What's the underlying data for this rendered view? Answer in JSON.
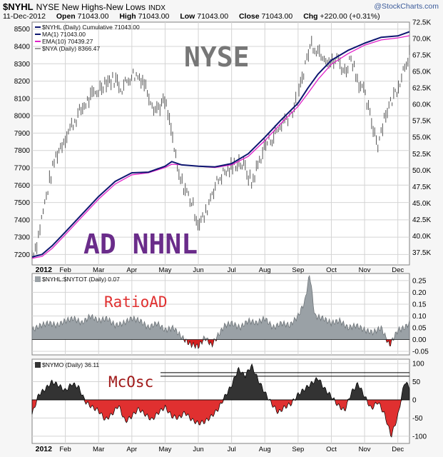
{
  "header": {
    "symbol": "$NYHL",
    "name": "NYSE New Highs-New Lows",
    "exchange": "INDX",
    "date": "11-Dec-2012",
    "open_label": "Open",
    "open": "71043.00",
    "high_label": "High",
    "high": "71043.00",
    "low_label": "Low",
    "low": "71043.00",
    "close_label": "Close",
    "close": "71043.00",
    "chg_label": "Chg",
    "chg": "+220.00 (+0.31%)",
    "credit": "@StockCharts.com"
  },
  "colors": {
    "background": "#f6f6f6",
    "panel_bg": "#ffffff",
    "grid": "#d4d4d4",
    "cumulative_line": "#0d1670",
    "ema_line": "#e020c8",
    "price_bars": "#555555",
    "ratio_fill": "#9aa1a6",
    "ratio_negative": "#d62020",
    "mcosc_positive": "#333333",
    "mcosc_negative": "#e03030",
    "annotation_nyse": "#777777",
    "annotation_adnhnl": "#6a2c8a",
    "annotation_ratio": "#e03030",
    "annotation_mcosc": "#a01818"
  },
  "chart_data": [
    {
      "type": "line",
      "panel": "main",
      "legend": [
        "$NYHL (Daily) Cumulative 71043.00",
        "MA(1) 71043.00",
        "EMA(10) 70439.27",
        "$NYA (Daily) 8366.47"
      ],
      "annotations": [
        "NYSE",
        "AD NHNL"
      ],
      "x_tick_labels": [
        "2012",
        "Feb",
        "Mar",
        "Apr",
        "May",
        "Jun",
        "Jul",
        "Aug",
        "Sep",
        "Oct",
        "Nov",
        "Dec"
      ],
      "left_axis": {
        "label": "$NYA",
        "ticks": [
          "7200",
          "7300",
          "7400",
          "7500",
          "7600",
          "7700",
          "7800",
          "7900",
          "8000",
          "8100",
          "8200",
          "8300",
          "8400",
          "8500"
        ],
        "ylim": [
          7140,
          8540
        ]
      },
      "right_axis": {
        "label": "$NYHL",
        "ticks": [
          "37.5K",
          "40.0K",
          "42.5K",
          "45.0K",
          "47.5K",
          "50.0K",
          "52.5K",
          "55.0K",
          "57.5K",
          "60.0K",
          "62.5K",
          "65.0K",
          "67.5K",
          "70.0K",
          "72.5K"
        ],
        "ylim": [
          35600,
          72500
        ]
      },
      "x_months": [
        0,
        1,
        2,
        3,
        4,
        5,
        6,
        7,
        8,
        9,
        10,
        11,
        11.35
      ],
      "series": [
        {
          "name": "$NYHL (Daily) Cumulative",
          "months": [
            0,
            0.3,
            0.6,
            1,
            1.5,
            2,
            2.5,
            3,
            3.5,
            4,
            4.2,
            4.5,
            5,
            5.5,
            6,
            6.5,
            7,
            7.5,
            8,
            8.3,
            8.6,
            9,
            9.5,
            10,
            10.5,
            11,
            11.35
          ],
          "values": [
            36800,
            37200,
            38500,
            40600,
            43300,
            46000,
            48300,
            49600,
            49700,
            50600,
            51300,
            50800,
            50600,
            50500,
            51000,
            52500,
            55000,
            57700,
            60200,
            62500,
            64600,
            66700,
            68200,
            69300,
            70200,
            70400,
            71043
          ]
        },
        {
          "name": "EMA(10)",
          "months": [
            0,
            0.3,
            0.6,
            1,
            1.5,
            2,
            2.5,
            3,
            3.5,
            4,
            4.2,
            4.5,
            5,
            5.5,
            6,
            6.5,
            7,
            7.5,
            8,
            8.3,
            8.6,
            9,
            9.5,
            10,
            10.5,
            11,
            11.35
          ],
          "values": [
            36600,
            36900,
            38100,
            40200,
            42900,
            45600,
            47900,
            49300,
            49600,
            50400,
            50900,
            50800,
            50600,
            50400,
            50800,
            52100,
            54500,
            57200,
            59700,
            61700,
            63800,
            66100,
            67700,
            69000,
            69800,
            70100,
            70439
          ]
        },
        {
          "name": "$NYA (Daily)",
          "months": [
            0,
            0.15,
            0.3,
            0.5,
            0.7,
            1,
            1.3,
            1.6,
            1.8,
            2,
            2.2,
            2.5,
            2.7,
            3,
            3.3,
            3.5,
            3.7,
            4,
            4.2,
            4.4,
            4.6,
            4.8,
            5,
            5.2,
            5.4,
            5.7,
            6,
            6.2,
            6.4,
            6.6,
            6.8,
            7,
            7.2,
            7.4,
            7.6,
            7.8,
            8,
            8.2,
            8.4,
            8.6,
            8.8,
            9,
            9.2,
            9.4,
            9.6,
            9.8,
            10,
            10.2,
            10.4,
            10.6,
            10.8,
            11,
            11.2,
            11.35
          ],
          "values": [
            7200,
            7270,
            7420,
            7600,
            7760,
            7880,
            7980,
            8070,
            8110,
            8150,
            8200,
            8210,
            8160,
            8240,
            8220,
            8130,
            8040,
            8080,
            7900,
            7650,
            7580,
            7500,
            7380,
            7420,
            7560,
            7660,
            7700,
            7740,
            7700,
            7610,
            7720,
            7830,
            7870,
            7920,
            7980,
            8020,
            8100,
            8290,
            8420,
            8380,
            8350,
            8300,
            8330,
            8250,
            8340,
            8210,
            8120,
            7970,
            7840,
            8000,
            8080,
            8170,
            8290,
            8366
          ]
        }
      ]
    },
    {
      "type": "area",
      "panel": "ratio",
      "legend": [
        "$NYHL:$NYTOT (Daily) 0.07"
      ],
      "annotations": [
        "RatioAD"
      ],
      "right_axis": {
        "ticks": [
          "-0.05",
          "0.00",
          "0.05",
          "0.10",
          "0.15",
          "0.20",
          "0.25"
        ],
        "ylim": [
          -0.065,
          0.28
        ]
      },
      "months": [
        0,
        0.25,
        0.5,
        0.75,
        1,
        1.25,
        1.5,
        1.75,
        2,
        2.25,
        2.5,
        2.75,
        3,
        3.25,
        3.5,
        3.75,
        4,
        4.25,
        4.5,
        4.75,
        5,
        5.2,
        5.4,
        5.6,
        5.8,
        6,
        6.25,
        6.5,
        6.75,
        7,
        7.25,
        7.5,
        7.75,
        8,
        8.2,
        8.35,
        8.5,
        8.75,
        9,
        9.25,
        9.5,
        9.75,
        10,
        10.25,
        10.5,
        10.75,
        11,
        11.2,
        11.35
      ],
      "values": [
        0.04,
        0.06,
        0.07,
        0.06,
        0.08,
        0.09,
        0.07,
        0.1,
        0.08,
        0.09,
        0.06,
        0.07,
        0.09,
        0.08,
        0.05,
        0.07,
        0.04,
        0.05,
        0.01,
        -0.02,
        -0.03,
        0.01,
        -0.025,
        0.02,
        0.06,
        0.07,
        0.05,
        0.08,
        0.07,
        0.09,
        0.05,
        0.07,
        0.06,
        0.1,
        0.16,
        0.28,
        0.1,
        0.09,
        0.07,
        0.08,
        0.05,
        0.06,
        0.04,
        0.03,
        0.05,
        -0.025,
        0.04,
        0.05,
        0.07
      ]
    },
    {
      "type": "area",
      "panel": "mcosc",
      "legend": [
        "$NYMO (Daily) 36.11"
      ],
      "annotations": [
        "McOsc"
      ],
      "right_axis": {
        "ticks": [
          "-100",
          "-50",
          "0",
          "50",
          "100"
        ],
        "ylim": [
          -120,
          112
        ]
      },
      "reference_lines": [
        65,
        75
      ],
      "months": [
        0,
        0.2,
        0.4,
        0.6,
        0.8,
        1,
        1.2,
        1.4,
        1.6,
        1.8,
        2,
        2.2,
        2.4,
        2.6,
        2.8,
        3,
        3.2,
        3.4,
        3.6,
        3.8,
        4,
        4.2,
        4.4,
        4.6,
        4.8,
        5,
        5.2,
        5.4,
        5.6,
        5.8,
        6,
        6.2,
        6.4,
        6.6,
        6.8,
        7,
        7.2,
        7.4,
        7.6,
        7.8,
        8,
        8.2,
        8.4,
        8.6,
        8.8,
        9,
        9.2,
        9.4,
        9.6,
        9.8,
        10,
        10.2,
        10.4,
        10.6,
        10.8,
        11,
        11.2,
        11.35
      ],
      "values": [
        -40,
        15,
        30,
        50,
        40,
        25,
        45,
        35,
        -5,
        -20,
        -30,
        -55,
        -40,
        -15,
        -60,
        -45,
        -25,
        -40,
        -55,
        -35,
        -20,
        -45,
        -50,
        -35,
        -55,
        -65,
        -60,
        -45,
        -25,
        10,
        40,
        85,
        65,
        95,
        55,
        20,
        -10,
        -35,
        -20,
        -10,
        15,
        30,
        45,
        60,
        30,
        10,
        -15,
        -30,
        20,
        45,
        10,
        -25,
        -5,
        -40,
        -100,
        -45,
        50,
        36
      ]
    }
  ]
}
